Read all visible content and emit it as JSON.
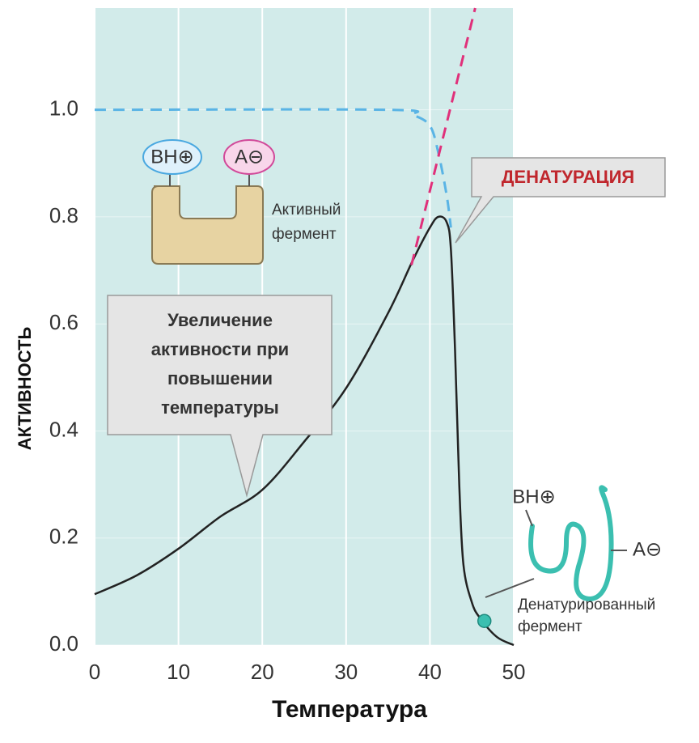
{
  "chart_data": {
    "type": "line",
    "x_label": "Температура",
    "y_label": "АКТИВНОСТЬ",
    "xlim": [
      0,
      50
    ],
    "ylim": [
      0,
      1.19
    ],
    "xticks": [
      0,
      10,
      20,
      30,
      40,
      50
    ],
    "yticks": [
      {
        "value": 0,
        "label": "0.0"
      },
      0.2,
      0.4,
      0.6,
      0.8,
      {
        "value": 1,
        "label": "1.0"
      }
    ],
    "grid": true,
    "background": "#d2ebea",
    "series": [
      {
        "color": "#222222",
        "dash": false,
        "x": [
          0,
          5,
          10,
          15,
          20,
          25,
          30,
          35,
          38,
          40,
          41,
          42,
          42.5,
          43,
          43.5,
          44,
          45,
          46,
          48,
          50
        ],
        "values": [
          0.095,
          0.13,
          0.18,
          0.24,
          0.29,
          0.38,
          0.48,
          0.62,
          0.72,
          0.78,
          0.8,
          0.79,
          0.74,
          0.55,
          0.3,
          0.15,
          0.08,
          0.05,
          0.015,
          0
        ]
      },
      {
        "color": "#5ab4e5",
        "dash": true,
        "x": [
          0,
          35,
          38,
          40,
          41,
          42,
          42.5
        ],
        "values": [
          1,
          1,
          0.99,
          0.97,
          0.92,
          0.84,
          0.78
        ]
      },
      {
        "color": "#e0307a",
        "dash": true,
        "x": [
          37.8,
          45.4
        ],
        "values": [
          0.71,
          1.19
        ]
      }
    ],
    "denatured_point": {
      "x": 46.5,
      "y": 0.045,
      "color": "#3bbfb0"
    },
    "annotations": {
      "denaturation": "ДЕНАТУРАЦИЯ",
      "increase": [
        "Увеличение",
        "активности при",
        "повышении",
        "температуры"
      ],
      "active_enzyme": [
        "Активный",
        "фермент"
      ],
      "denatured_enzyme": [
        "Денатурированный",
        "фермент"
      ],
      "base_group": "BH⊕",
      "acid_group": "A⊖"
    }
  }
}
